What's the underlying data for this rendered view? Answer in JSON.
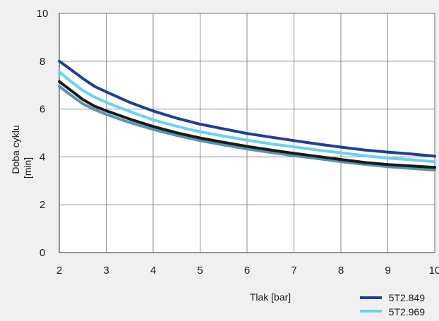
{
  "chart_data": {
    "type": "line",
    "xlabel": "Tlak [bar]",
    "ylabel": [
      "Doba cyklu",
      "[min]"
    ],
    "xlim": [
      2,
      10
    ],
    "ylim": [
      0,
      10
    ],
    "x_ticks": [
      2,
      3,
      4,
      5,
      6,
      7,
      8,
      9,
      10
    ],
    "y_ticks": [
      0,
      2,
      4,
      6,
      8,
      10
    ],
    "grid": true,
    "legend_position": "bottom-right",
    "x": [
      2,
      2.25,
      2.5,
      2.75,
      3,
      3.5,
      4,
      4.5,
      5,
      5.5,
      6,
      6.5,
      7,
      7.5,
      8,
      8.5,
      9,
      9.5,
      10
    ],
    "series": [
      {
        "name": "5T2.849",
        "color": "#1f3f95",
        "values": [
          8.0,
          7.65,
          7.28,
          6.95,
          6.72,
          6.28,
          5.92,
          5.62,
          5.37,
          5.17,
          4.98,
          4.83,
          4.68,
          4.54,
          4.41,
          4.29,
          4.2,
          4.12,
          4.03
        ]
      },
      {
        "name": "5T2.969",
        "color": "#6cd0f5",
        "values": [
          7.55,
          7.15,
          6.78,
          6.5,
          6.28,
          5.9,
          5.55,
          5.28,
          5.05,
          4.87,
          4.7,
          4.55,
          4.42,
          4.29,
          4.17,
          4.05,
          3.95,
          3.88,
          3.8
        ]
      },
      {
        "color": "#1a1a1a",
        "values": [
          7.15,
          6.78,
          6.4,
          6.12,
          5.93,
          5.58,
          5.27,
          5.01,
          4.79,
          4.61,
          4.44,
          4.29,
          4.15,
          4.02,
          3.89,
          3.77,
          3.68,
          3.62,
          3.56
        ]
      },
      {
        "color": "#5a93ad",
        "values": [
          6.95,
          6.58,
          6.22,
          5.98,
          5.78,
          5.44,
          5.15,
          4.9,
          4.68,
          4.5,
          4.33,
          4.19,
          4.05,
          3.93,
          3.8,
          3.69,
          3.59,
          3.52,
          3.45
        ]
      }
    ]
  }
}
